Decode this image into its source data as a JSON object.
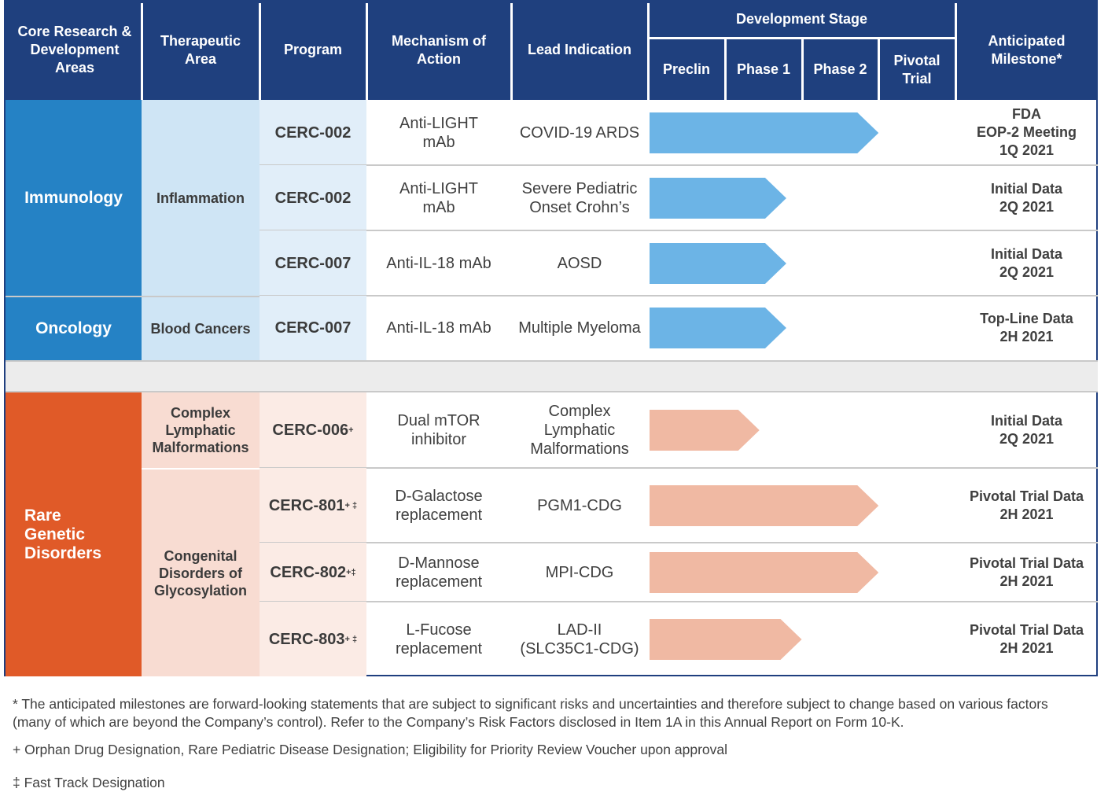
{
  "header": {
    "areas": "Core Research & Development Areas",
    "therapeutic": "Therapeutic Area",
    "program": "Program",
    "mechanism": "Mechanism of Action",
    "indication": "Lead Indication",
    "dev_stage": "Development Stage",
    "stages": [
      "Preclin",
      "Phase 1",
      "Phase 2",
      "Pivotal Trial"
    ],
    "milestone": "Anticipated Milestone*"
  },
  "colors": {
    "header": "#1f407e",
    "immunology": "#2582c5",
    "immunology_area": "#cfe5f5",
    "immunology_program": "#e1eef9",
    "rare": "#e05a28",
    "rare_area": "#f8dcd2",
    "rare_program": "#fbebe5",
    "arrow_blue": "#6cb4e6",
    "arrow_salmon": "#f0b9a3"
  },
  "groups": [
    {
      "area": "Immunology",
      "therapeutic": [
        {
          "name": "Inflammation"
        }
      ]
    },
    {
      "area": "Oncology",
      "therapeutic": [
        {
          "name": "Blood Cancers"
        }
      ]
    },
    {
      "area": "Rare Genetic Disorders",
      "therapeutic": [
        {
          "name": "Complex Lymphatic Malformations"
        },
        {
          "name": "Congenital Disorders of Glycosylation"
        }
      ]
    }
  ],
  "programs": [
    {
      "program": "CERC-002",
      "sup": "",
      "mechanism": "Anti-LIGHT mAb",
      "indication": "COVID-19 ARDS",
      "stage_progress": 3.0,
      "milestone": "FDA\nEOP-2 Meeting\n1Q 2021"
    },
    {
      "program": "CERC-002",
      "sup": "",
      "mechanism": "Anti-LIGHT mAb",
      "indication": "Severe Pediatric Onset Crohn’s",
      "stage_progress": 1.8,
      "milestone": "Initial Data\n2Q 2021"
    },
    {
      "program": "CERC-007",
      "sup": "",
      "mechanism": "Anti-IL-18 mAb",
      "indication": "AOSD",
      "stage_progress": 1.8,
      "milestone": "Initial Data\n2Q 2021"
    },
    {
      "program": "CERC-007",
      "sup": "",
      "mechanism": "Anti-IL-18 mAb",
      "indication": "Multiple Myeloma",
      "stage_progress": 1.8,
      "milestone": "Top-Line Data\n2H 2021"
    },
    {
      "program": "CERC-006",
      "sup": "+",
      "mechanism": "Dual mTOR inhibitor",
      "indication": "Complex Lymphatic Malformations",
      "stage_progress": 1.45,
      "milestone": "Initial Data\n2Q 2021"
    },
    {
      "program": "CERC-801",
      "sup": "+ ‡",
      "mechanism": "D-Galactose replacement",
      "indication": "PGM1-CDG",
      "stage_progress": 3.0,
      "milestone": "Pivotal Trial Data\n2H 2021"
    },
    {
      "program": "CERC-802 ",
      "sup": "+‡",
      "mechanism": "D-Mannose replacement",
      "indication": "MPI-CDG",
      "stage_progress": 3.0,
      "milestone": "Pivotal Trial Data\n2H 2021"
    },
    {
      "program": "CERC-803",
      "sup": "+ ‡",
      "mechanism": "L-Fucose replacement",
      "indication": "LAD-II (SLC35C1-CDG)",
      "stage_progress": 2.0,
      "milestone": "Pivotal Trial Data\n2H 2021"
    }
  ],
  "footnotes": {
    "milestone": "* The anticipated milestones are forward-looking statements that are subject to significant risks and uncertainties and therefore subject to change based on various factors (many of which are beyond the Company’s control).  Refer to the Company’s Risk Factors disclosed in Item 1A in this Annual Report on Form 10-K.",
    "orphan": "+ Orphan Drug Designation, Rare Pediatric Disease Designation; Eligibility for Priority Review Voucher upon approval",
    "fast_track": "‡ Fast Track Designation"
  }
}
